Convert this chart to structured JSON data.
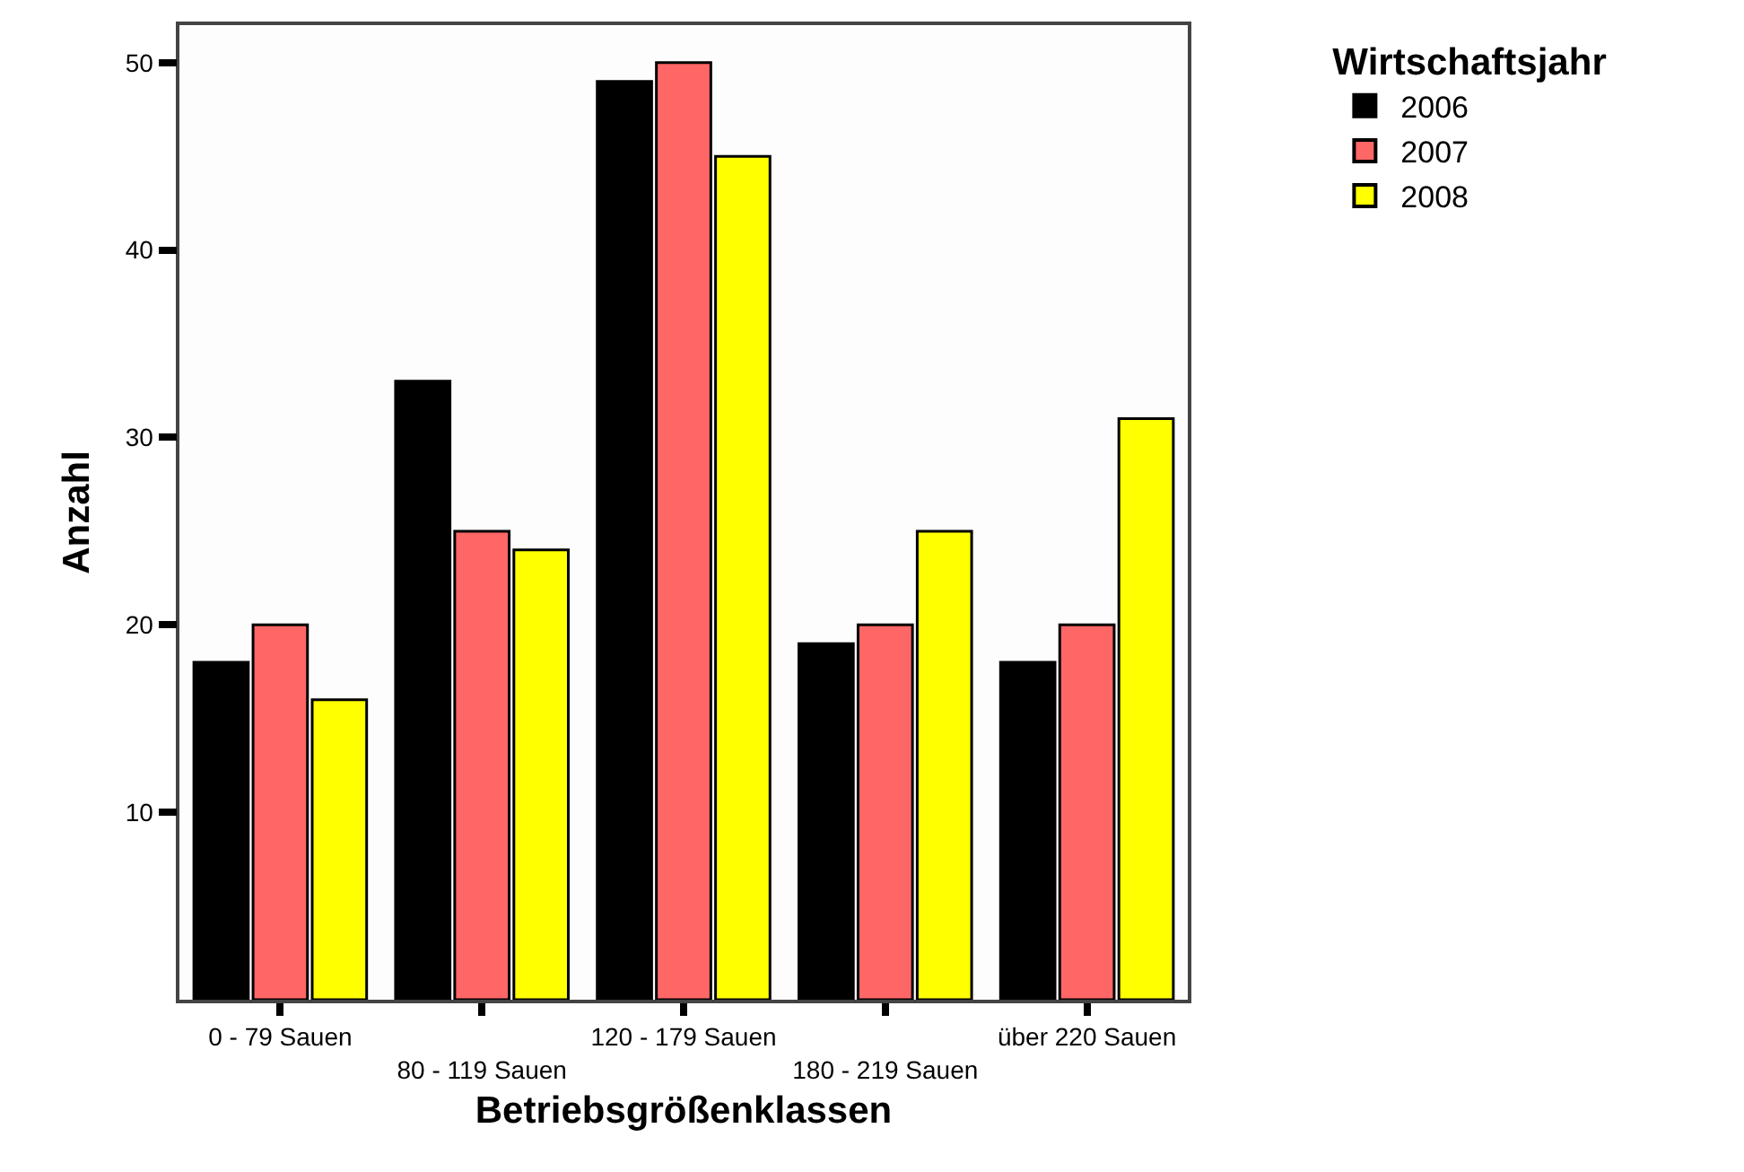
{
  "chart_data": {
    "type": "bar",
    "xlabel": "Betriebsgrößenklassen",
    "ylabel": "Anzahl",
    "legend_title": "Wirtschaftsjahr",
    "categories": [
      "0 - 79 Sauen",
      "80 - 119 Sauen",
      "120 - 179 Sauen",
      "180 - 219 Sauen",
      "über 220 Sauen"
    ],
    "series": [
      {
        "name": "2006",
        "color": "#000000",
        "values": [
          18,
          33,
          49,
          19,
          18
        ]
      },
      {
        "name": "2007",
        "color": "#ff6666",
        "values": [
          20,
          25,
          50,
          20,
          20
        ]
      },
      {
        "name": "2008",
        "color": "#ffff00",
        "values": [
          16,
          24,
          45,
          25,
          31
        ]
      }
    ],
    "ylim": [
      0,
      52
    ],
    "yticks": [
      10,
      20,
      30,
      40,
      50
    ],
    "legend": "top right"
  }
}
